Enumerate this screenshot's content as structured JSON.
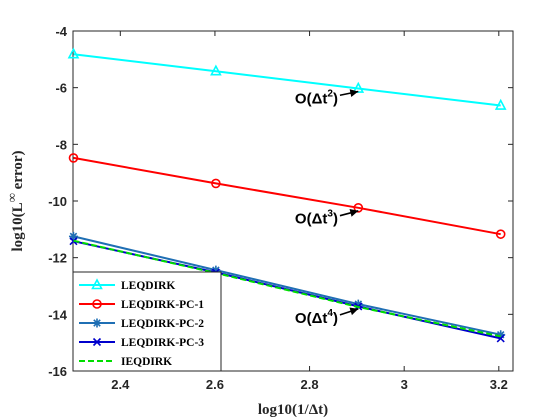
{
  "chart_data": {
    "type": "line",
    "xlabel": "log10(1/Δt)",
    "ylabel_parts": [
      "log10(L",
      "∞",
      " error)"
    ],
    "xlim": [
      2.3,
      3.23
    ],
    "ylim": [
      -16,
      -4
    ],
    "xticks": [
      2.4,
      2.6,
      2.8,
      3,
      3.2
    ],
    "xtick_labels": [
      "2.4",
      "2.6",
      "2.8",
      "3",
      "3.2"
    ],
    "yticks": [
      -16,
      -14,
      -12,
      -10,
      -8,
      -6,
      -4
    ],
    "ytick_labels": [
      "-16",
      "-14",
      "-12",
      "-10",
      "-8",
      "-6",
      "-4"
    ],
    "grid": false,
    "legend_placement": "bottom-left",
    "x": [
      2.301,
      2.602,
      2.903,
      3.204
    ],
    "series": [
      {
        "name": "LEQDIRK",
        "color": "#00ffff",
        "marker": "triangle",
        "dash": "solid",
        "values": [
          -4.82,
          -5.42,
          -6.03,
          -6.63
        ]
      },
      {
        "name": "LEQDIRK-PC-1",
        "color": "#ff0000",
        "marker": "circle",
        "dash": "solid",
        "values": [
          -8.48,
          -9.38,
          -10.24,
          -11.17
        ]
      },
      {
        "name": "LEQDIRK-PC-2",
        "color": "#1f6fb4",
        "marker": "star",
        "dash": "solid",
        "values": [
          -11.25,
          -12.44,
          -13.64,
          -14.72
        ]
      },
      {
        "name": "LEQDIRK-PC-3",
        "color": "#0000cc",
        "marker": "x",
        "dash": "solid",
        "values": [
          -11.42,
          -12.52,
          -13.72,
          -14.85
        ]
      },
      {
        "name": "IEQDIRK",
        "color": "#00dd00",
        "marker": "none",
        "dash": "dashed",
        "values": [
          -11.4,
          -12.54,
          -13.74,
          -14.78
        ]
      }
    ],
    "annotations": [
      {
        "base": "O(Δt",
        "exp": "2",
        "close": ")",
        "text_at": [
          2.86,
          -6.55
        ],
        "arrow_to": [
          2.903,
          -6.03
        ]
      },
      {
        "base": "O(Δt",
        "exp": "3",
        "close": ")",
        "text_at": [
          2.86,
          -10.8
        ],
        "arrow_to": [
          2.903,
          -10.24
        ]
      },
      {
        "base": "O(Δt",
        "exp": "4",
        "close": ")",
        "text_at": [
          2.86,
          -14.3
        ],
        "arrow_to": [
          2.903,
          -13.7
        ]
      }
    ]
  }
}
